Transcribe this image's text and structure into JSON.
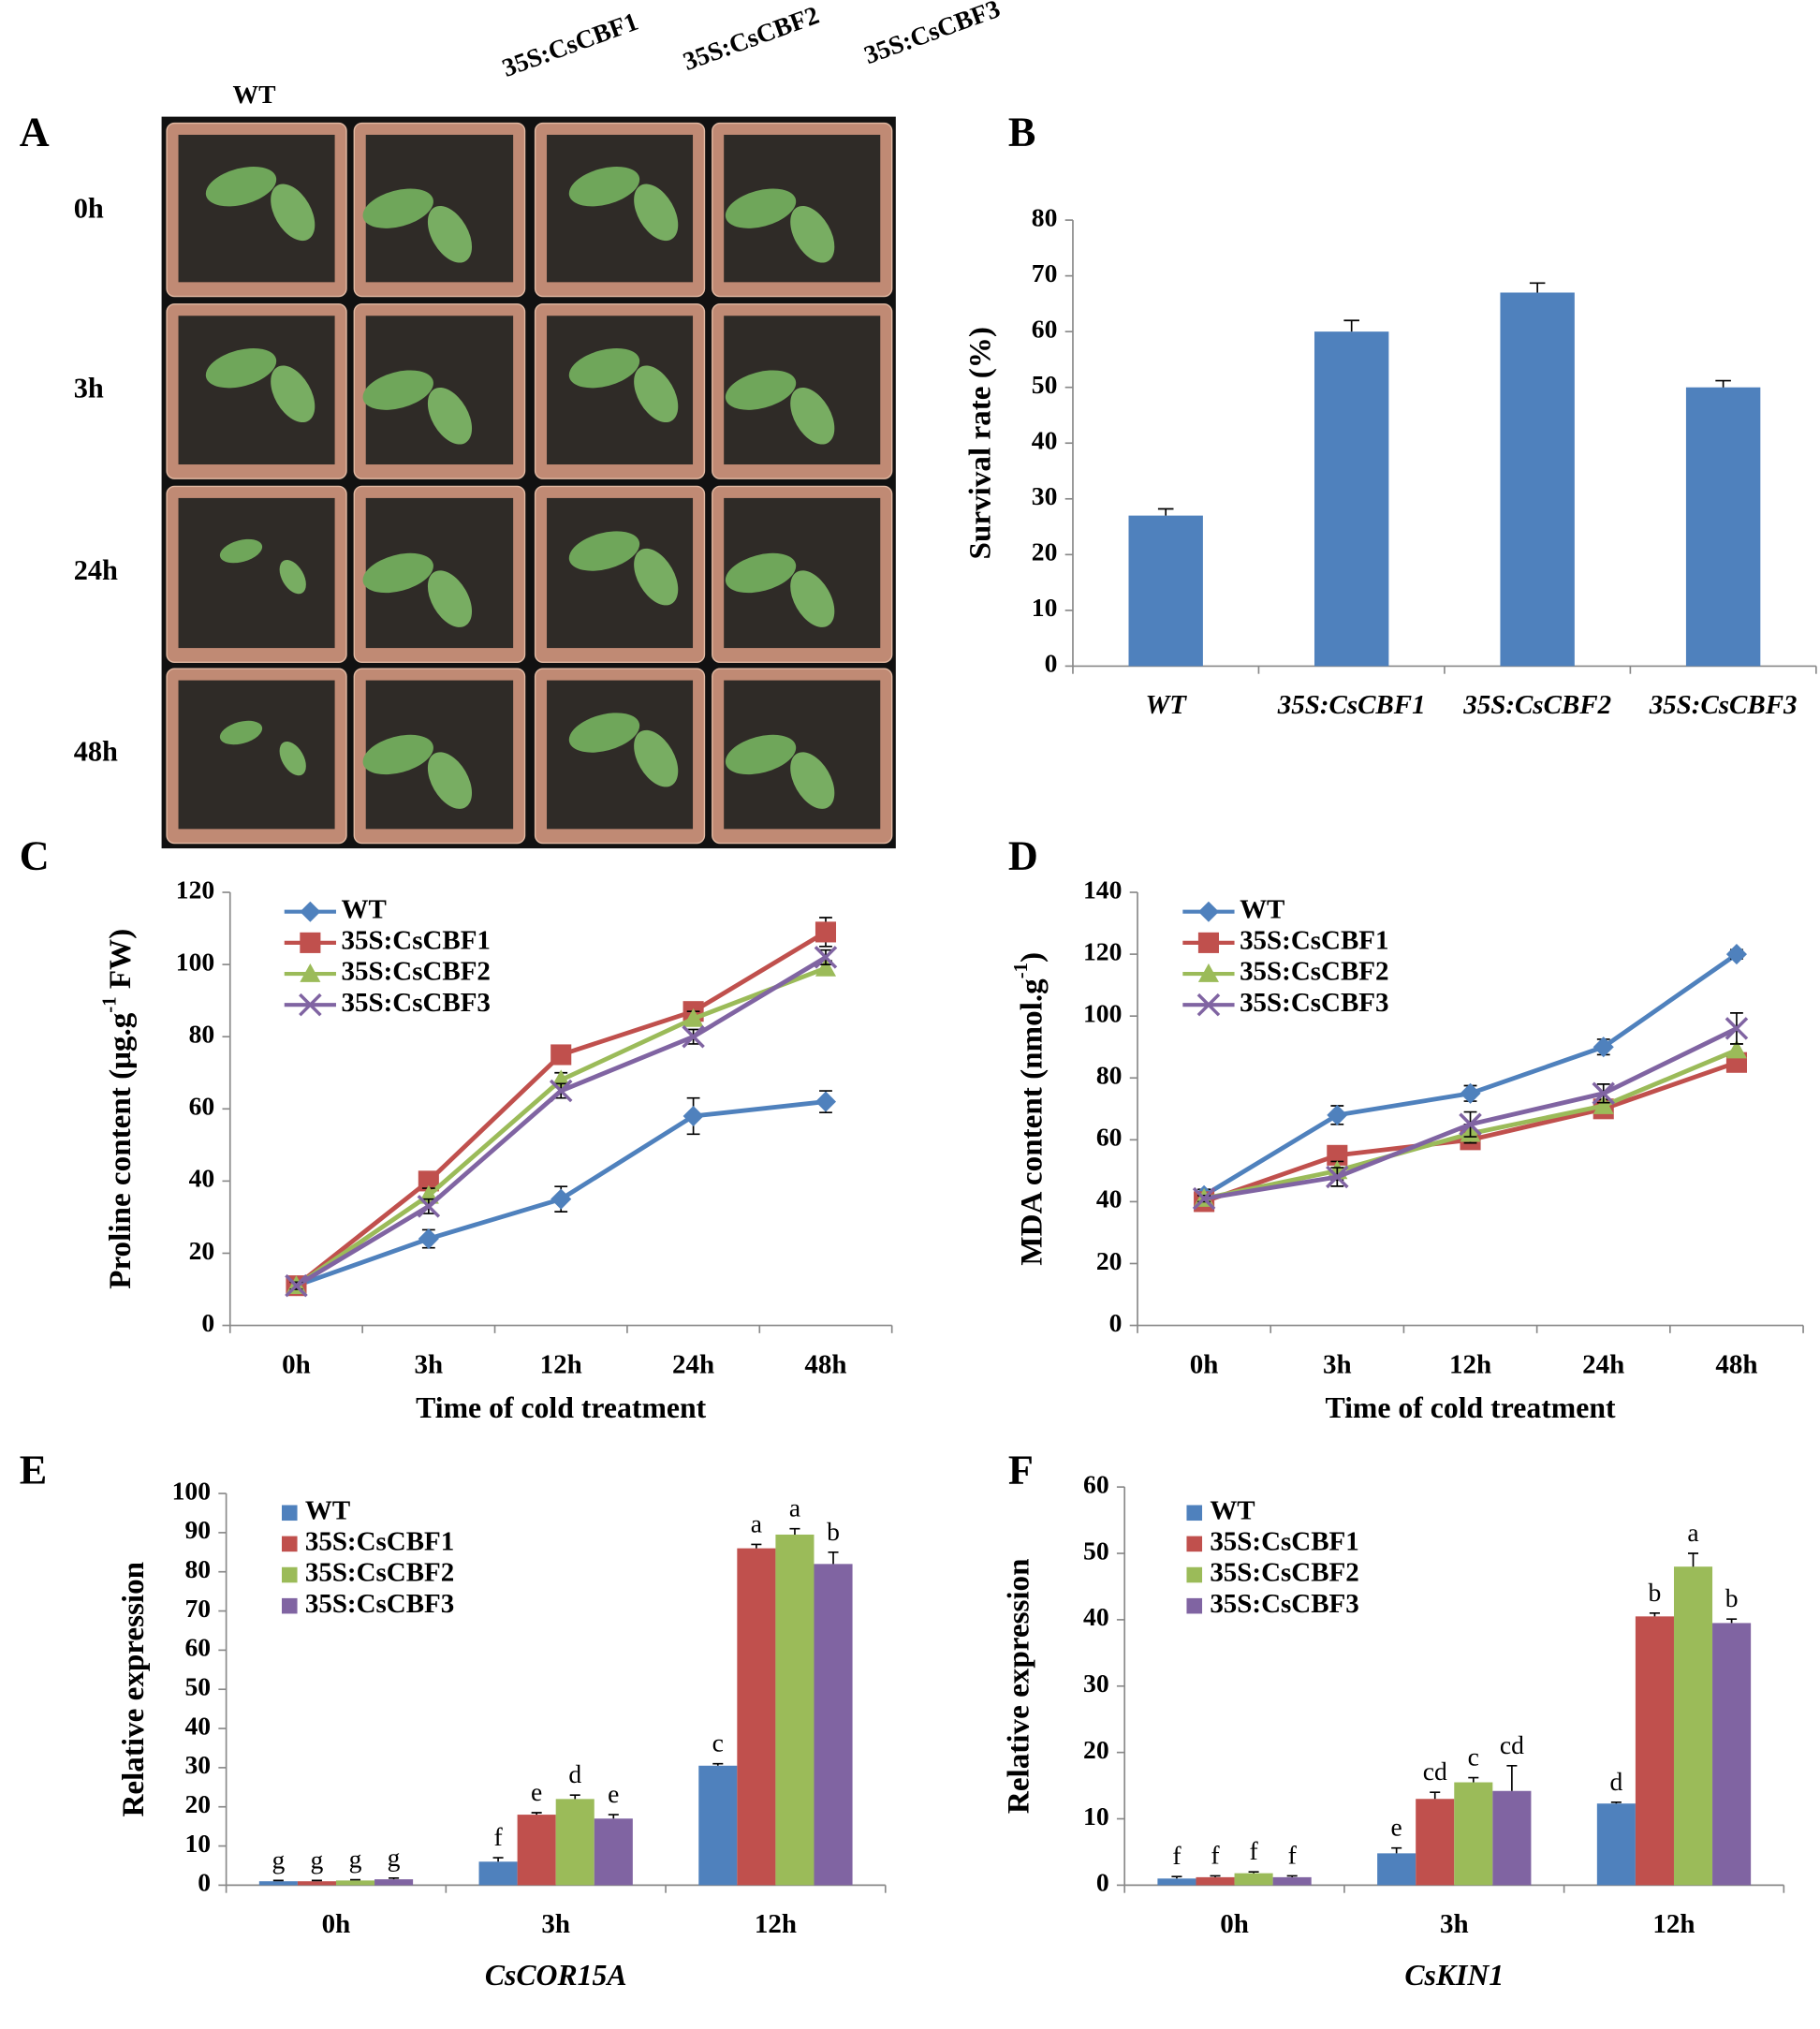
{
  "panel_labels": [
    "A",
    "B",
    "C",
    "D",
    "E",
    "F"
  ],
  "photo_panel": {
    "columns": [
      "WT",
      "35S:CsCBF1",
      "35S:CsCBF2",
      "35S:CsCBF3"
    ],
    "rows": [
      "0h",
      "3h",
      "24h",
      "48h"
    ]
  },
  "chart_data": [
    {
      "type": "bar",
      "ylabel": [
        "Survival rate (%)"
      ],
      "categories": [
        "WT",
        "35S:CsCBF1",
        "35S:CsCBF2",
        "35S:CsCBF3"
      ],
      "series": [
        {
          "color": "#4f81bd",
          "values": [
            27,
            60,
            67,
            50
          ],
          "errors": [
            1.2,
            2,
            1.7,
            1.2
          ]
        }
      ],
      "ylim": [
        0,
        80
      ],
      "yticks": [
        0,
        10,
        20,
        30,
        40,
        50,
        60,
        70,
        80
      ]
    },
    {
      "type": "line",
      "ylabel": [
        "Proline content (μg.g",
        "-1",
        " FW)"
      ],
      "xlabel": "Time of cold treatment",
      "categories": [
        "0h",
        "3h",
        "12h",
        "24h",
        "48h"
      ],
      "series": [
        {
          "name": "WT",
          "color": "#4f81bd",
          "marker": "diamond",
          "values": [
            11,
            24,
            35,
            58,
            62
          ],
          "errors": [
            1,
            2.5,
            3.5,
            5,
            3
          ]
        },
        {
          "name": "35S:CsCBF1",
          "color": "#c0504d",
          "marker": "square",
          "values": [
            11,
            40,
            75,
            87,
            109
          ],
          "errors": [
            1,
            1.5,
            2,
            2,
            4
          ]
        },
        {
          "name": "35S:CsCBF2",
          "color": "#9bbb59",
          "marker": "triangle",
          "values": [
            11,
            36,
            68,
            85,
            99
          ],
          "errors": [
            1,
            2,
            2,
            2,
            2
          ]
        },
        {
          "name": "35S:CsCBF3",
          "color": "#8064a2",
          "marker": "x",
          "values": [
            11,
            33,
            65,
            80,
            102
          ],
          "errors": [
            1,
            2,
            2,
            2,
            2
          ]
        }
      ],
      "ylim": [
        0,
        120
      ],
      "yticks": [
        0,
        20,
        40,
        60,
        80,
        100,
        120
      ]
    },
    {
      "type": "line",
      "ylabel": [
        "MDA content (nmol.g",
        "-1",
        ")"
      ],
      "xlabel": "Time of cold treatment",
      "categories": [
        "0h",
        "3h",
        "12h",
        "24h",
        "48h"
      ],
      "series": [
        {
          "name": "WT",
          "color": "#4f81bd",
          "marker": "diamond",
          "values": [
            42,
            68,
            75,
            90,
            120
          ],
          "errors": [
            2,
            3,
            2.5,
            2.5,
            1.5
          ]
        },
        {
          "name": "35S:CsCBF1",
          "color": "#c0504d",
          "marker": "square",
          "values": [
            40,
            55,
            60,
            70,
            85
          ],
          "errors": [
            1,
            2,
            2,
            2,
            2
          ]
        },
        {
          "name": "35S:CsCBF2",
          "color": "#9bbb59",
          "marker": "triangle",
          "values": [
            41,
            50,
            62,
            71,
            89
          ],
          "errors": [
            1,
            3,
            3,
            2,
            2
          ]
        },
        {
          "name": "35S:CsCBF3",
          "color": "#8064a2",
          "marker": "x",
          "values": [
            41,
            48,
            65,
            75,
            96
          ],
          "errors": [
            1,
            3,
            4,
            3,
            5
          ]
        }
      ],
      "ylim": [
        0,
        140
      ],
      "yticks": [
        0,
        20,
        40,
        60,
        80,
        100,
        120,
        140
      ]
    },
    {
      "type": "grouped-bar",
      "ylabel": [
        "Relative expression"
      ],
      "xlabel": "CsCOR15A",
      "categories": [
        "0h",
        "3h",
        "12h"
      ],
      "series": [
        {
          "name": "WT",
          "color": "#4f81bd",
          "values": [
            1,
            6,
            30.5
          ],
          "errors": [
            0.2,
            1,
            0.5
          ],
          "letters": [
            "g",
            "f",
            "c"
          ]
        },
        {
          "name": "35S:CsCBF1",
          "color": "#c0504d",
          "values": [
            1,
            18,
            86
          ],
          "errors": [
            0.2,
            0.5,
            1
          ],
          "letters": [
            "g",
            "e",
            "a"
          ]
        },
        {
          "name": "35S:CsCBF2",
          "color": "#9bbb59",
          "values": [
            1.2,
            22,
            89.5
          ],
          "errors": [
            0.2,
            1,
            1.5
          ],
          "letters": [
            "g",
            "d",
            "a"
          ]
        },
        {
          "name": "35S:CsCBF3",
          "color": "#8064a2",
          "values": [
            1.5,
            17,
            82
          ],
          "errors": [
            0.3,
            1,
            3
          ],
          "letters": [
            "g",
            "e",
            "b"
          ]
        }
      ],
      "ylim": [
        0,
        100
      ],
      "yticks": [
        0,
        10,
        20,
        30,
        40,
        50,
        60,
        70,
        80,
        90,
        100
      ]
    },
    {
      "type": "grouped-bar",
      "ylabel": [
        "Relative expression"
      ],
      "xlabel": "CsKIN1",
      "categories": [
        "0h",
        "3h",
        "12h"
      ],
      "series": [
        {
          "name": "WT",
          "color": "#4f81bd",
          "values": [
            1,
            4.8,
            12.3
          ],
          "errors": [
            0.3,
            0.8,
            0.2
          ],
          "letters": [
            "f",
            "e",
            "d"
          ]
        },
        {
          "name": "35S:CsCBF1",
          "color": "#c0504d",
          "values": [
            1.2,
            13,
            40.5
          ],
          "errors": [
            0.2,
            1,
            0.5
          ],
          "letters": [
            "f",
            "cd",
            "b"
          ]
        },
        {
          "name": "35S:CsCBF2",
          "color": "#9bbb59",
          "values": [
            1.8,
            15.5,
            48
          ],
          "errors": [
            0.2,
            0.7,
            2
          ],
          "letters": [
            "f",
            "c",
            "a"
          ]
        },
        {
          "name": "35S:CsCBF3",
          "color": "#8064a2",
          "values": [
            1.2,
            14.2,
            39.5
          ],
          "errors": [
            0.2,
            3.8,
            0.6
          ],
          "letters": [
            "f",
            "cd",
            "b"
          ]
        }
      ],
      "ylim": [
        0,
        60
      ],
      "yticks": [
        0,
        10,
        20,
        30,
        40,
        50,
        60
      ]
    }
  ]
}
